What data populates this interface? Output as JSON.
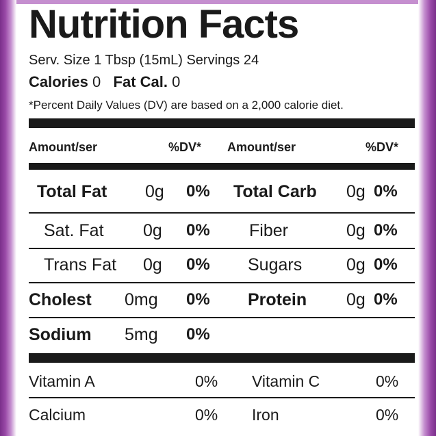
{
  "title": "Nutrition Facts",
  "serving_line": "Serv. Size 1 Tbsp (15mL) Servings 24",
  "calories": {
    "label": "Calories",
    "value": "0",
    "fat_label": "Fat Cal.",
    "fat_value": "0"
  },
  "dv_note": "*Percent Daily Values (DV) are based on a 2,000 calorie diet.",
  "headers": {
    "amount_left": "Amount/ser",
    "dv_left": "%DV*",
    "amount_right": "Amount/ser",
    "dv_right": "%DV*"
  },
  "nutrients_left": [
    {
      "name": "Total Fat",
      "amount": "0g",
      "dv": "0%"
    },
    {
      "name": "Sat. Fat",
      "amount": "0g",
      "dv": "0%"
    },
    {
      "name": "Trans Fat",
      "amount": "0g",
      "dv": "0%"
    },
    {
      "name": "Cholest",
      "amount": "0mg",
      "dv": "0%"
    },
    {
      "name": "Sodium",
      "amount": "5mg",
      "dv": "0%"
    }
  ],
  "nutrients_right": [
    {
      "name": "Total Carb",
      "amount": "0g",
      "dv": "0%"
    },
    {
      "name": "Fiber",
      "amount": "0g",
      "dv": "0%"
    },
    {
      "name": "Sugars",
      "amount": "0g",
      "dv": "0%"
    },
    {
      "name": "Protein",
      "amount": "0g",
      "dv": "0%"
    }
  ],
  "vitamins": [
    {
      "name": "Vitamin A",
      "dv": "0%"
    },
    {
      "name": "Vitamin C",
      "dv": "0%"
    },
    {
      "name": "Calcium",
      "dv": "0%"
    },
    {
      "name": "Iron",
      "dv": "0%"
    }
  ],
  "colors": {
    "text": "#1a1a1a",
    "packaging_edge": "#7a2f8a"
  }
}
